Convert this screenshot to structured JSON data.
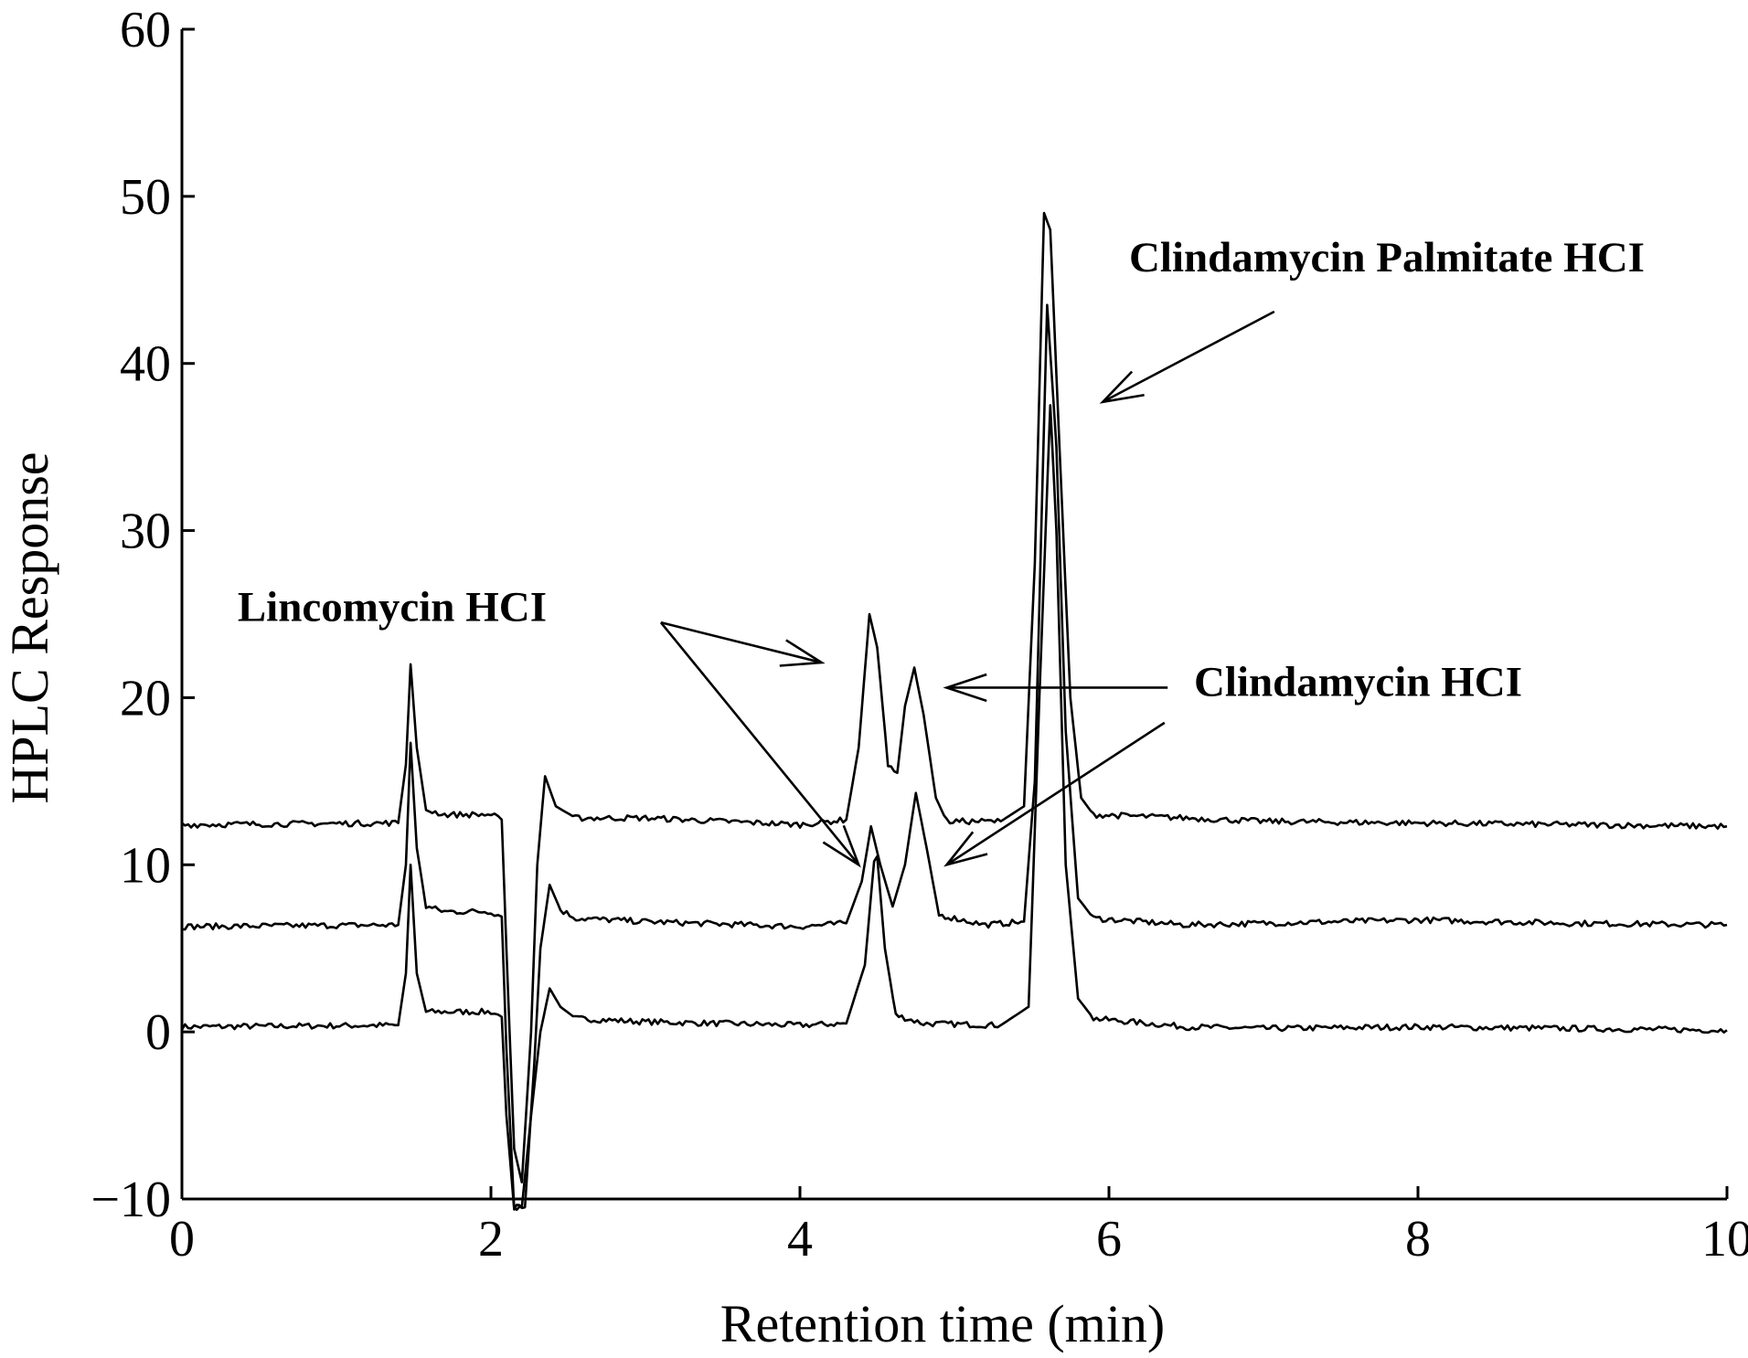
{
  "chart_data": {
    "type": "line",
    "title": "",
    "xlabel": "Retention time (min)",
    "ylabel": "HPLC Response",
    "xlim": [
      0,
      10
    ],
    "ylim": [
      -10,
      60
    ],
    "xticks": [
      0,
      2,
      4,
      6,
      8,
      10
    ],
    "yticks": [
      -10,
      0,
      10,
      20,
      30,
      40,
      50,
      60
    ],
    "xtick_labels": [
      "0",
      "2",
      "4",
      "6",
      "8",
      "10"
    ],
    "ytick_labels": [
      "−10",
      "0",
      "10",
      "20",
      "30",
      "40",
      "50",
      "60"
    ],
    "grid": false,
    "legend": "none",
    "series": [
      {
        "points": [
          [
            0,
            0.3
          ],
          [
            1.4,
            0.4
          ],
          [
            1.45,
            3.5
          ],
          [
            1.48,
            10.0
          ],
          [
            1.52,
            3.5
          ],
          [
            1.58,
            1.2
          ],
          [
            1.7,
            1.2
          ],
          [
            2.0,
            1.2
          ],
          [
            2.07,
            0.9
          ],
          [
            2.1,
            -5.0
          ],
          [
            2.15,
            -10.5
          ],
          [
            2.2,
            -10.5
          ],
          [
            2.26,
            -5.0
          ],
          [
            2.32,
            0.0
          ],
          [
            2.38,
            2.6
          ],
          [
            2.45,
            1.5
          ],
          [
            2.55,
            0.8
          ],
          [
            3.0,
            0.6
          ],
          [
            4.0,
            0.4
          ],
          [
            4.3,
            0.5
          ],
          [
            4.42,
            4.0
          ],
          [
            4.48,
            10.2
          ],
          [
            4.5,
            10.5
          ],
          [
            4.55,
            5.0
          ],
          [
            4.62,
            1.0
          ],
          [
            4.8,
            0.5
          ],
          [
            5.3,
            0.4
          ],
          [
            5.48,
            1.5
          ],
          [
            5.55,
            20.0
          ],
          [
            5.62,
            37.5
          ],
          [
            5.66,
            30.0
          ],
          [
            5.72,
            10.0
          ],
          [
            5.8,
            2.0
          ],
          [
            5.9,
            0.8
          ],
          [
            6.5,
            0.3
          ],
          [
            7.0,
            0.2
          ],
          [
            8.0,
            0.3
          ],
          [
            9.0,
            0.2
          ],
          [
            10.0,
            0.1
          ]
        ]
      },
      {
        "points": [
          [
            0,
            6.3
          ],
          [
            1.4,
            6.4
          ],
          [
            1.45,
            10.0
          ],
          [
            1.48,
            17.3
          ],
          [
            1.52,
            11.0
          ],
          [
            1.58,
            7.5
          ],
          [
            1.7,
            7.2
          ],
          [
            2.0,
            7.2
          ],
          [
            2.07,
            6.9
          ],
          [
            2.1,
            -1.0
          ],
          [
            2.15,
            -10.5
          ],
          [
            2.22,
            -10.5
          ],
          [
            2.28,
            -2.0
          ],
          [
            2.32,
            5.0
          ],
          [
            2.38,
            8.8
          ],
          [
            2.45,
            7.3
          ],
          [
            2.55,
            6.8
          ],
          [
            3.0,
            6.6
          ],
          [
            4.0,
            6.3
          ],
          [
            4.3,
            6.5
          ],
          [
            4.4,
            9.0
          ],
          [
            4.46,
            12.3
          ],
          [
            4.52,
            10.0
          ],
          [
            4.6,
            7.5
          ],
          [
            4.68,
            10.0
          ],
          [
            4.75,
            14.3
          ],
          [
            4.82,
            11.0
          ],
          [
            4.9,
            7.0
          ],
          [
            5.2,
            6.4
          ],
          [
            5.45,
            6.6
          ],
          [
            5.52,
            15.0
          ],
          [
            5.6,
            43.5
          ],
          [
            5.66,
            35.0
          ],
          [
            5.72,
            18.0
          ],
          [
            5.8,
            8.0
          ],
          [
            5.9,
            6.8
          ],
          [
            6.5,
            6.4
          ],
          [
            7.0,
            6.5
          ],
          [
            8.0,
            6.7
          ],
          [
            9.0,
            6.5
          ],
          [
            10.0,
            6.4
          ]
        ]
      },
      {
        "points": [
          [
            0,
            12.4
          ],
          [
            1.4,
            12.5
          ],
          [
            1.45,
            16.0
          ],
          [
            1.48,
            22.0
          ],
          [
            1.52,
            17.0
          ],
          [
            1.58,
            13.3
          ],
          [
            1.7,
            13.0
          ],
          [
            2.0,
            13.0
          ],
          [
            2.07,
            12.7
          ],
          [
            2.1,
            5.0
          ],
          [
            2.15,
            -7.0
          ],
          [
            2.2,
            -9.0
          ],
          [
            2.26,
            0.0
          ],
          [
            2.3,
            10.0
          ],
          [
            2.35,
            15.3
          ],
          [
            2.42,
            13.5
          ],
          [
            2.55,
            12.8
          ],
          [
            3.0,
            12.8
          ],
          [
            4.0,
            12.4
          ],
          [
            4.3,
            12.7
          ],
          [
            4.38,
            17.0
          ],
          [
            4.45,
            25.0
          ],
          [
            4.5,
            23.0
          ],
          [
            4.57,
            16.0
          ],
          [
            4.63,
            15.5
          ],
          [
            4.68,
            19.5
          ],
          [
            4.74,
            21.8
          ],
          [
            4.8,
            19.0
          ],
          [
            4.88,
            14.0
          ],
          [
            4.95,
            12.6
          ],
          [
            5.3,
            12.6
          ],
          [
            5.45,
            13.5
          ],
          [
            5.52,
            28.0
          ],
          [
            5.58,
            49.0
          ],
          [
            5.62,
            48.0
          ],
          [
            5.68,
            35.0
          ],
          [
            5.75,
            20.0
          ],
          [
            5.82,
            14.0
          ],
          [
            5.9,
            13.0
          ],
          [
            6.5,
            12.8
          ],
          [
            7.0,
            12.6
          ],
          [
            8.0,
            12.5
          ],
          [
            9.0,
            12.4
          ],
          [
            10.0,
            12.3
          ]
        ]
      }
    ],
    "annotations": [
      {
        "text": "Clindamycin Palmitate HCI",
        "anchor": [
          6.13,
          45.5
        ],
        "arrow_from": [
          7.07,
          43.1
        ],
        "arrow_to": [
          5.96,
          37.7
        ],
        "align": "start"
      },
      {
        "text": "Lincomycin HCI",
        "anchor": [
          0.36,
          24.6
        ],
        "arrows": [
          {
            "from": [
              3.1,
              24.5
            ],
            "to": [
              4.14,
              22.1
            ]
          },
          {
            "from": [
              3.1,
              24.5
            ],
            "to": [
              4.38,
              10.0
            ]
          }
        ],
        "align": "start"
      },
      {
        "text": "Clindamycin HCI",
        "anchor": [
          6.55,
          20.1
        ],
        "arrows": [
          {
            "from": [
              6.38,
              20.6
            ],
            "to": [
              4.95,
              20.6
            ]
          },
          {
            "from": [
              6.36,
              18.5
            ],
            "to": [
              4.95,
              10.0
            ]
          }
        ],
        "align": "start"
      }
    ]
  }
}
